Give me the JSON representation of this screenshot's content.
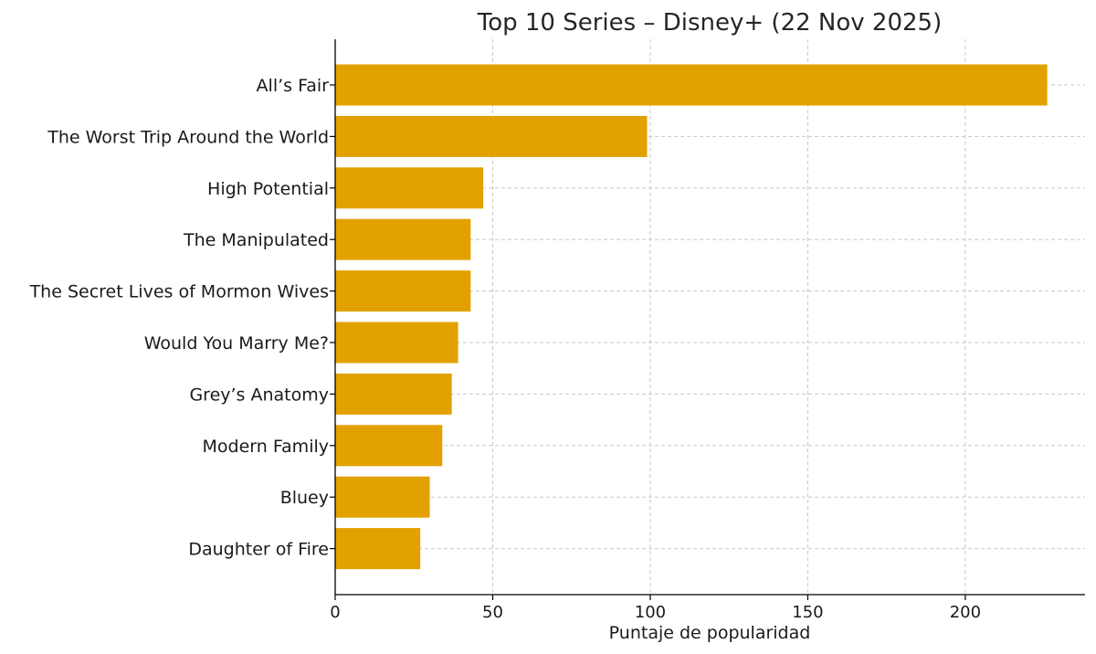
{
  "chart_data": {
    "type": "bar",
    "orientation": "horizontal",
    "title": "Top 10 Series – Disney+ (22 Nov 2025)",
    "xlabel": "Puntaje de popularidad",
    "ylabel": "",
    "categories": [
      "All’s Fair",
      "The Worst Trip Around the World",
      "High Potential",
      "The Manipulated",
      "The Secret Lives of Mormon Wives",
      "Would You Marry Me?",
      "Grey’s Anatomy",
      "Modern Family",
      "Bluey",
      "Daughter of Fire"
    ],
    "values": [
      226,
      99,
      47,
      43,
      43,
      39,
      37,
      34,
      30,
      27
    ],
    "xlim": [
      0,
      238
    ],
    "xticks": [
      "0",
      "50",
      "100",
      "150",
      "200"
    ],
    "grid": true,
    "bar_color": "#E3A100"
  }
}
